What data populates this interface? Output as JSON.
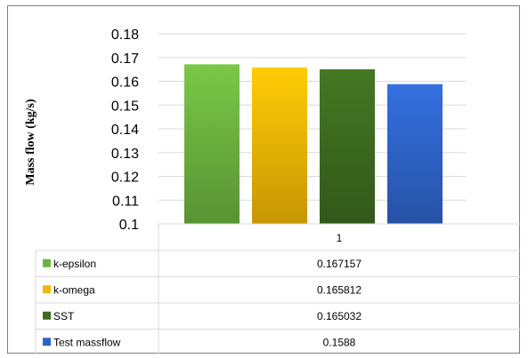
{
  "chart_data": {
    "type": "bar",
    "title": "",
    "xlabel": "",
    "ylabel": "Mass flow (kg/s)",
    "ylim": [
      0.1,
      0.18
    ],
    "yticks": [
      "0.18",
      "0.17",
      "0.16",
      "0.15",
      "0.14",
      "0.13",
      "0.12",
      "0.11",
      "0.1"
    ],
    "categories": [
      "1"
    ],
    "grid": true,
    "legend": "data-table-below",
    "series": [
      {
        "name": "k-epsilon",
        "values": [
          0.167157
        ],
        "label": "0.167157",
        "color": "#6db33f"
      },
      {
        "name": "k-omega",
        "values": [
          0.165812
        ],
        "label": "0.165812",
        "color": "#f2b705"
      },
      {
        "name": "SST",
        "values": [
          0.165032
        ],
        "label": "0.165032",
        "color": "#3d6b20"
      },
      {
        "name": "Test massflow",
        "values": [
          0.1588
        ],
        "label": "0.1588",
        "color": "#2e64c9"
      }
    ]
  }
}
